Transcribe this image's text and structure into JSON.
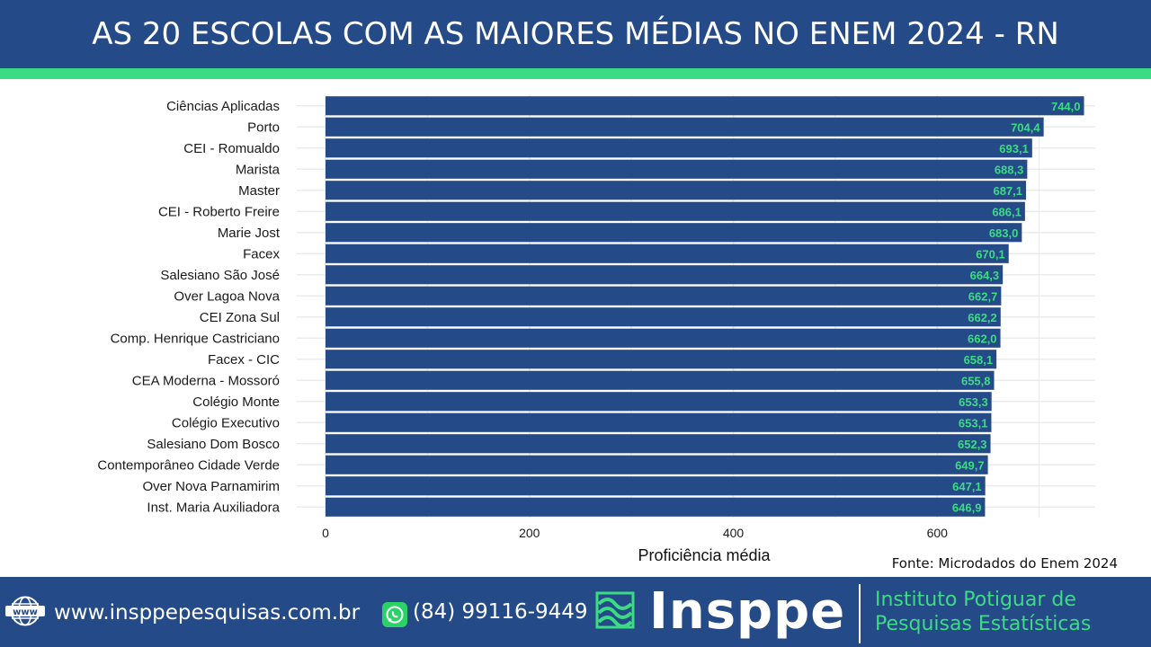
{
  "header": {
    "title": "AS 20 ESCOLAS COM AS MAIORES MÉDIAS NO ENEM 2024 - RN"
  },
  "colors": {
    "header_bg": "#244a87",
    "accent_green": "#3ddc84",
    "bar": "#244a87",
    "value_label": "#3ddc84",
    "grid": "#ebebeb"
  },
  "chart_data": {
    "type": "bar",
    "orientation": "horizontal",
    "categories": [
      "Ciências Aplicadas",
      "Porto",
      "CEI - Romualdo",
      "Marista",
      "Master",
      "CEI - Roberto Freire",
      "Marie Jost",
      "Facex",
      "Salesiano São José",
      "Over Lagoa Nova",
      "CEI Zona Sul",
      "Comp. Henrique Castriciano",
      "Facex - CIC",
      "CEA Moderna - Mossoró",
      "Colégio Monte",
      "Colégio Executivo",
      "Salesiano Dom Bosco",
      "Contemporâneo Cidade Verde",
      "Over Nova Parnamirim",
      "Inst. Maria Auxiliadora"
    ],
    "values": [
      744.0,
      704.4,
      693.1,
      688.3,
      687.1,
      686.1,
      683.0,
      670.1,
      664.3,
      662.7,
      662.2,
      662.0,
      658.1,
      655.8,
      653.3,
      653.1,
      652.3,
      649.7,
      647.1,
      646.9
    ],
    "value_labels": [
      "744,0",
      "704,4",
      "693,1",
      "688,3",
      "687,1",
      "686,1",
      "683,0",
      "670,1",
      "664,3",
      "662,7",
      "662,2",
      "662,0",
      "658,1",
      "655,8",
      "653,3",
      "653,1",
      "652,3",
      "649,7",
      "647,1",
      "646,9"
    ],
    "xlabel": "Proficiência média",
    "ylabel": "",
    "xlim": [
      0,
      755
    ],
    "x_ticks": [
      0,
      200,
      400,
      600
    ],
    "x_tick_labels": [
      "0",
      "200",
      "400",
      "600"
    ],
    "grid": true
  },
  "source_note": "Fonte: Microdados do Enem 2024",
  "footer": {
    "www_label": "www",
    "website": "www.insppepesquisas.com.br",
    "phone": "(84) 99116-9449",
    "brand": "Insppe",
    "institute_line1": "Instituto Potiguar de",
    "institute_line2": "Pesquisas Estatísticas",
    "icons": [
      "globe-www-icon",
      "whatsapp-icon",
      "inspp-wave-logo-icon"
    ]
  }
}
